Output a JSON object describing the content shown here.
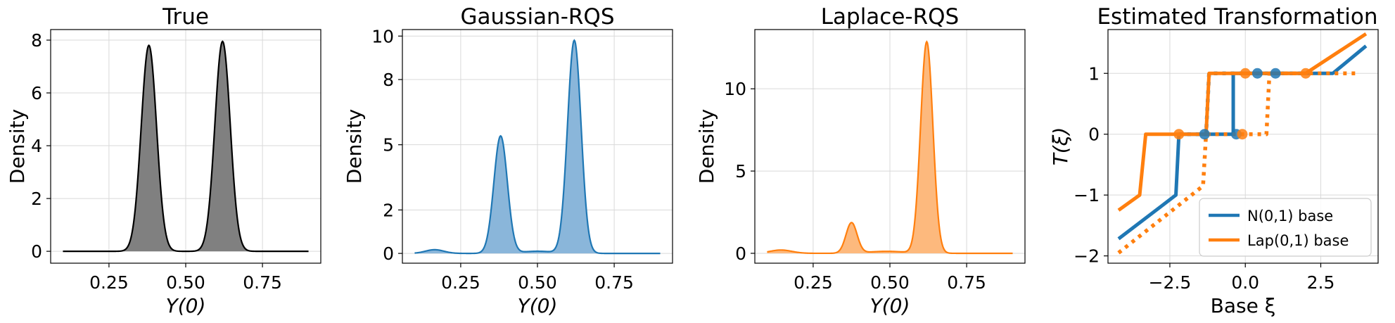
{
  "figure": {
    "background": "#ffffff",
    "colors": {
      "true": "#000000",
      "gaussian": "#1f77b4",
      "laplace": "#ff7f0e",
      "grid": "#d9d9d9"
    }
  },
  "chart_data": [
    {
      "id": "true",
      "type": "area",
      "title": "True",
      "xlabel": "Y(0)",
      "ylabel": "Density",
      "xlim": [
        0.06,
        0.94
      ],
      "ylim": [
        -0.45,
        8.4
      ],
      "xticks": [
        0.25,
        0.5,
        0.75
      ],
      "xtick_labels": [
        "0.25",
        "0.50",
        "0.75"
      ],
      "yticks": [
        0,
        2,
        4,
        6,
        8
      ],
      "ytick_labels": [
        "0",
        "2",
        "4",
        "6",
        "8"
      ],
      "grid": true,
      "fill_color": "#808080",
      "line_color": "#000000",
      "x_range": [
        0.1,
        0.9
      ],
      "components": [
        {
          "mu": 0.38,
          "sigma": 0.025,
          "peak": 7.8
        },
        {
          "mu": 0.62,
          "sigma": 0.025,
          "peak": 7.95
        }
      ]
    },
    {
      "id": "gaussian",
      "type": "area",
      "title": "Gaussian-RQS",
      "xlabel": "Y(0)",
      "ylabel": "Density",
      "xlim": [
        0.06,
        0.94
      ],
      "ylim": [
        -0.45,
        10.3
      ],
      "xticks": [
        0.25,
        0.5,
        0.75
      ],
      "xtick_labels": [
        "0.25",
        "0.50",
        "0.75"
      ],
      "yticks": [
        0,
        2,
        5,
        8,
        10
      ],
      "ytick_labels": [
        "0",
        "2",
        "5",
        "8",
        "10"
      ],
      "grid": true,
      "fill_color": "#8ab6da",
      "line_color": "#1f77b4",
      "x_range": [
        0.1,
        0.9
      ],
      "components": [
        {
          "mu": 0.165,
          "sigma": 0.03,
          "peak": 0.17
        },
        {
          "mu": 0.38,
          "sigma": 0.022,
          "peak": 5.4
        },
        {
          "mu": 0.62,
          "sigma": 0.022,
          "peak": 9.8
        },
        {
          "mu": 0.5,
          "sigma": 0.05,
          "peak": 0.1
        }
      ]
    },
    {
      "id": "laplace",
      "type": "area",
      "title": "Laplace-RQS",
      "xlabel": "Y(0)",
      "ylabel": "Density",
      "xlim": [
        0.06,
        0.94
      ],
      "ylim": [
        -0.6,
        13.6
      ],
      "xticks": [
        0.25,
        0.5,
        0.75
      ],
      "xtick_labels": [
        "0.25",
        "0.50",
        "0.75"
      ],
      "yticks": [
        0,
        5,
        10
      ],
      "ytick_labels": [
        "0",
        "5",
        "10"
      ],
      "grid": true,
      "fill_color": "#fdb97d",
      "line_color": "#ff7f0e",
      "x_range": [
        0.1,
        0.9
      ],
      "components": [
        {
          "mu": 0.145,
          "sigma": 0.035,
          "peak": 0.2
        },
        {
          "mu": 0.375,
          "sigma": 0.018,
          "peak": 1.85
        },
        {
          "mu": 0.62,
          "sigma": 0.02,
          "peak": 12.85
        },
        {
          "mu": 0.49,
          "sigma": 0.06,
          "peak": 0.12
        }
      ]
    },
    {
      "id": "transformation",
      "type": "line",
      "title": "Estimated Transformation",
      "xlabel": "Base ξ",
      "ylabel": "T(ξ)",
      "xlim": [
        -4.55,
        4.4
      ],
      "ylim": [
        -2.12,
        1.72
      ],
      "xticks": [
        -2.5,
        0,
        2.5
      ],
      "xtick_labels": [
        "−2.5",
        "0.0",
        "2.5"
      ],
      "yticks": [
        -2,
        -1,
        0,
        1
      ],
      "ytick_labels": [
        "−2",
        "−1",
        "0",
        "1"
      ],
      "grid": true,
      "legend": {
        "position": "lower-right",
        "entries": [
          {
            "label": "N(0,1) base",
            "color": "#1f77b4"
          },
          {
            "label": "Lap(0,1) base",
            "color": "#ff7f0e"
          }
        ]
      },
      "series": [
        {
          "name": "N(0,1) base",
          "style": "solid",
          "color": "#1f77b4",
          "x": [
            -4.2,
            -2.3,
            -2.2,
            -2.2,
            -0.4,
            -0.4,
            2.9,
            4.0
          ],
          "y": [
            -1.72,
            -1.0,
            0,
            0,
            0,
            1,
            1,
            1.45
          ]
        },
        {
          "name": "N(0,1) base",
          "style": "dotted",
          "color": "#1f77b4",
          "x": [
            -2.2,
            -2.2,
            -1.3,
            -1.2,
            0.4,
            1.0,
            2.0
          ],
          "y": [
            0,
            0,
            0,
            1,
            1,
            1,
            1
          ]
        },
        {
          "name": "Lap(0,1) base",
          "style": "solid",
          "color": "#ff7f0e",
          "x": [
            -4.2,
            -3.5,
            -3.3,
            -2.2,
            -1.3,
            -1.2,
            0.0,
            2.0,
            4.0
          ],
          "y": [
            -1.25,
            -1.0,
            0,
            0,
            0,
            1,
            1,
            1,
            1.65
          ]
        },
        {
          "name": "Lap(0,1) base",
          "style": "dotted",
          "color": "#ff7f0e",
          "x": [
            -4.2,
            -1.4,
            -1.3,
            -0.1,
            0.7,
            0.8,
            2.0,
            3.8
          ],
          "y": [
            -1.95,
            -0.85,
            0,
            0,
            0,
            1,
            1,
            1
          ]
        }
      ],
      "markers": [
        {
          "x": -1.35,
          "y": 0,
          "color": "#1f77b4"
        },
        {
          "x": -0.3,
          "y": 0,
          "color": "#1f77b4"
        },
        {
          "x": 0.4,
          "y": 1,
          "color": "#1f77b4"
        },
        {
          "x": 1.0,
          "y": 1,
          "color": "#1f77b4"
        },
        {
          "x": -2.2,
          "y": 0,
          "color": "#ff7f0e"
        },
        {
          "x": -0.1,
          "y": 0,
          "color": "#ff7f0e"
        },
        {
          "x": 0.0,
          "y": 1,
          "color": "#ff7f0e"
        },
        {
          "x": 2.0,
          "y": 1,
          "color": "#ff7f0e"
        }
      ]
    }
  ]
}
